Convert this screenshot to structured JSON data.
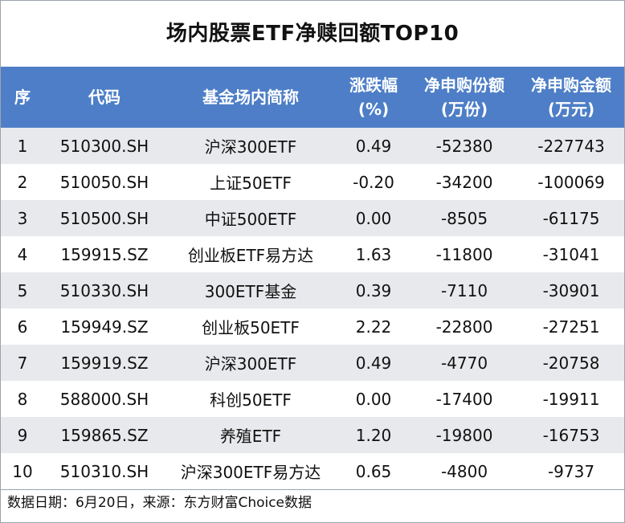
{
  "title": "场内股票ETF净赎回额TOP10",
  "headers": {
    "rank": "序",
    "code": "代码",
    "name": "基金场内简称",
    "change_l1": "涨跌幅",
    "change_l2": "(%)",
    "shares_l1": "净申购份额",
    "shares_l2": "(万份)",
    "amount_l1": "净申购金额",
    "amount_l2": "(万元)"
  },
  "rows": [
    {
      "rank": "1",
      "code": "510300.SH",
      "name": "沪深300ETF",
      "change": "0.49",
      "shares": "-52380",
      "amount": "-227743"
    },
    {
      "rank": "2",
      "code": "510050.SH",
      "name": "上证50ETF",
      "change": "-0.20",
      "shares": "-34200",
      "amount": "-100069"
    },
    {
      "rank": "3",
      "code": "510500.SH",
      "name": "中证500ETF",
      "change": "0.00",
      "shares": "-8505",
      "amount": "-61175"
    },
    {
      "rank": "4",
      "code": "159915.SZ",
      "name": "创业板ETF易方达",
      "change": "1.63",
      "shares": "-11800",
      "amount": "-31041"
    },
    {
      "rank": "5",
      "code": "510330.SH",
      "name": "300ETF基金",
      "change": "0.39",
      "shares": "-7110",
      "amount": "-30901"
    },
    {
      "rank": "6",
      "code": "159949.SZ",
      "name": "创业板50ETF",
      "change": "2.22",
      "shares": "-22800",
      "amount": "-27251"
    },
    {
      "rank": "7",
      "code": "159919.SZ",
      "name": "沪深300ETF",
      "change": "0.49",
      "shares": "-4770",
      "amount": "-20758"
    },
    {
      "rank": "8",
      "code": "588000.SH",
      "name": "科创50ETF",
      "change": "0.00",
      "shares": "-17400",
      "amount": "-19911"
    },
    {
      "rank": "9",
      "code": "159865.SZ",
      "name": "养殖ETF",
      "change": "1.20",
      "shares": "-19800",
      "amount": "-16753"
    },
    {
      "rank": "10",
      "code": "510310.SH",
      "name": "沪深300ETF易方达",
      "change": "0.65",
      "shares": "-4800",
      "amount": "-9737"
    }
  ],
  "footer": "数据日期：6月20日，来源：东方财富Choice数据"
}
